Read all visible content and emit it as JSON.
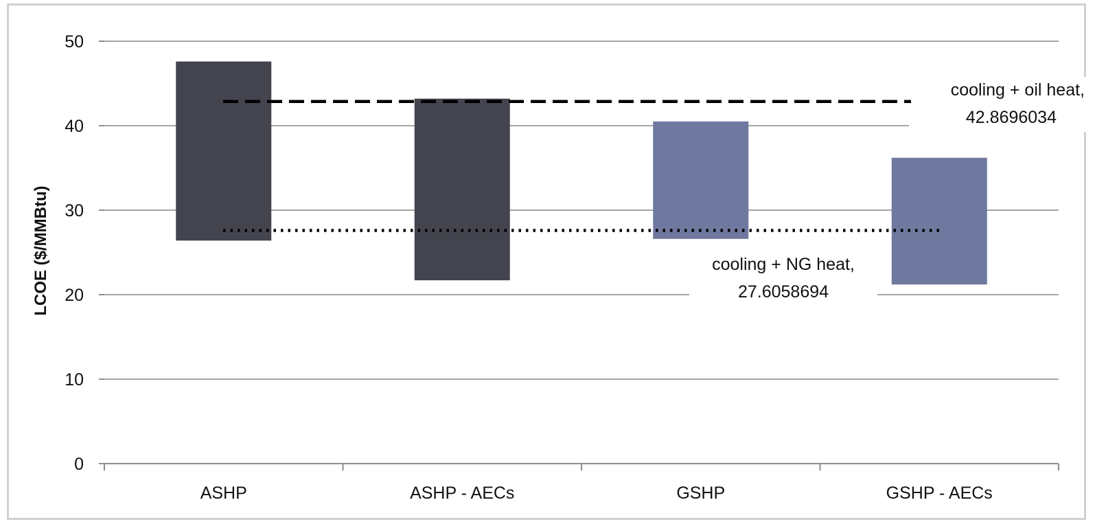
{
  "chart_data": {
    "type": "bar",
    "subtype": "floating-range",
    "ylabel": "LCOE ($/MMBtu)",
    "ylim": [
      0,
      50
    ],
    "yticks": [
      "0",
      "10",
      "20",
      "30",
      "40",
      "50"
    ],
    "categories": [
      "ASHP",
      "ASHP - AECs",
      "GSHP",
      "GSHP - AECs"
    ],
    "ranges": [
      {
        "low": 26.4,
        "high": 47.6,
        "color": "#44444f"
      },
      {
        "low": 21.7,
        "high": 43.2,
        "color": "#44444f"
      },
      {
        "low": 26.6,
        "high": 40.5,
        "color": "#6f789e"
      },
      {
        "low": 21.2,
        "high": 36.2,
        "color": "#6f789e"
      }
    ],
    "reference_lines": [
      {
        "value": 42.8696034,
        "style": "dashed",
        "label_line1": "cooling + oil heat,",
        "label_line2": "42.8696034"
      },
      {
        "value": 27.6058694,
        "style": "dotted",
        "label_line1": "cooling + NG heat,",
        "label_line2": "27.6058694"
      }
    ],
    "grid": true,
    "legend": "none"
  }
}
